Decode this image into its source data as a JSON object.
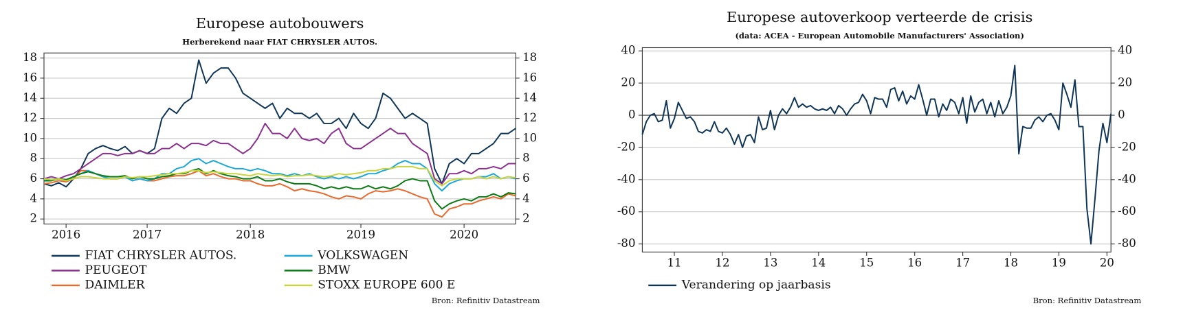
{
  "chart_data": [
    {
      "type": "line",
      "title": "Europese autobouwers",
      "subtitle": "Herberekend naar FIAT CHRYSLER AUTOS.",
      "source": "Bron: Refinitiv Datastream",
      "categories": [
        null,
        null,
        null,
        "2016",
        null,
        null,
        null,
        null,
        null,
        null,
        null,
        null,
        null,
        null,
        "2017",
        null,
        null,
        null,
        null,
        null,
        null,
        null,
        null,
        null,
        null,
        null,
        null,
        null,
        "2018",
        null,
        null,
        null,
        null,
        null,
        null,
        null,
        null,
        null,
        null,
        null,
        null,
        null,
        null,
        "2019",
        null,
        null,
        null,
        null,
        null,
        null,
        null,
        null,
        null,
        null,
        null,
        null,
        null,
        "2020",
        null,
        null,
        null,
        null,
        null,
        null,
        null
      ],
      "series": [
        {
          "name": "FIAT CHRYSLER AUTOS.",
          "color": "#0e3456",
          "values": [
            5.5,
            5.3,
            5.6,
            5.2,
            6.0,
            7.0,
            8.5,
            9.0,
            9.3,
            9.0,
            8.8,
            9.2,
            8.5,
            8.8,
            8.5,
            9.0,
            12.0,
            13.0,
            12.5,
            13.5,
            14.0,
            17.8,
            15.5,
            16.5,
            17.0,
            17.0,
            16.0,
            14.5,
            14.0,
            13.5,
            13.0,
            13.5,
            12.0,
            13.0,
            12.5,
            12.5,
            12.0,
            12.5,
            11.5,
            11.5,
            12.0,
            11.0,
            12.5,
            11.5,
            11.0,
            12.0,
            14.5,
            14.0,
            13.0,
            12.0,
            12.5,
            12.0,
            11.5,
            7.0,
            5.5,
            7.5,
            8.0,
            7.5,
            8.5,
            8.5,
            9.0,
            9.5,
            10.5,
            10.5,
            11.0
          ]
        },
        {
          "name": "PEUGEOT",
          "color": "#8b2f8f",
          "values": [
            6.0,
            6.2,
            6.0,
            6.3,
            6.5,
            7.0,
            7.5,
            8.0,
            8.5,
            8.5,
            8.3,
            8.5,
            8.5,
            8.8,
            8.5,
            8.5,
            9.0,
            9.0,
            9.5,
            9.0,
            9.5,
            9.5,
            9.3,
            9.8,
            9.5,
            9.5,
            9.0,
            8.5,
            9.0,
            10.0,
            11.5,
            10.5,
            10.5,
            10.0,
            11.0,
            10.0,
            9.8,
            10.0,
            9.5,
            10.5,
            11.0,
            9.5,
            9.0,
            9.0,
            9.5,
            10.0,
            10.5,
            11.0,
            10.5,
            10.5,
            9.5,
            9.0,
            8.5,
            6.0,
            5.5,
            6.5,
            6.5,
            6.8,
            6.5,
            7.0,
            7.0,
            7.2,
            7.0,
            7.5,
            7.5
          ]
        },
        {
          "name": "DAIMLER",
          "color": "#e8692b",
          "values": [
            5.5,
            5.6,
            5.8,
            5.7,
            6.0,
            6.8,
            6.8,
            6.5,
            6.2,
            6.0,
            6.0,
            6.2,
            5.8,
            6.0,
            5.8,
            5.8,
            6.0,
            6.2,
            6.3,
            6.3,
            6.5,
            6.8,
            6.3,
            6.5,
            6.2,
            6.0,
            6.0,
            5.8,
            5.8,
            5.5,
            5.3,
            5.3,
            5.5,
            5.2,
            4.8,
            5.0,
            4.8,
            4.7,
            4.5,
            4.2,
            4.0,
            4.3,
            4.2,
            4.0,
            4.5,
            4.8,
            4.7,
            4.8,
            5.0,
            4.8,
            4.5,
            4.2,
            4.0,
            2.5,
            2.2,
            3.0,
            3.2,
            3.5,
            3.5,
            3.8,
            4.0,
            4.2,
            4.0,
            4.5,
            4.3
          ]
        },
        {
          "name": "VOLKSWAGEN",
          "color": "#1aa7d8",
          "values": [
            5.8,
            5.9,
            6.0,
            5.8,
            6.2,
            6.5,
            6.8,
            6.5,
            6.2,
            6.0,
            6.0,
            6.2,
            5.8,
            6.0,
            5.8,
            6.0,
            6.5,
            6.5,
            7.0,
            7.2,
            7.8,
            8.0,
            7.5,
            7.8,
            7.5,
            7.2,
            7.0,
            7.0,
            6.8,
            7.0,
            6.8,
            6.5,
            6.5,
            6.3,
            6.5,
            6.3,
            6.5,
            6.2,
            6.0,
            6.2,
            6.0,
            6.2,
            6.0,
            6.2,
            6.5,
            6.5,
            6.8,
            7.0,
            7.5,
            7.8,
            7.5,
            7.5,
            7.0,
            5.5,
            4.8,
            5.5,
            5.8,
            6.0,
            6.0,
            6.2,
            6.2,
            6.5,
            6.0,
            6.2,
            6.0
          ]
        },
        {
          "name": "BMW",
          "color": "#0a7a12",
          "values": [
            5.8,
            5.8,
            6.0,
            5.9,
            6.2,
            6.5,
            6.7,
            6.5,
            6.3,
            6.2,
            6.2,
            6.3,
            6.0,
            6.2,
            6.0,
            6.0,
            6.2,
            6.3,
            6.5,
            6.5,
            6.8,
            7.0,
            6.5,
            6.8,
            6.5,
            6.3,
            6.2,
            6.0,
            6.0,
            6.2,
            5.8,
            5.8,
            6.0,
            5.7,
            5.5,
            5.5,
            5.5,
            5.3,
            5.0,
            5.2,
            5.0,
            5.2,
            5.0,
            5.0,
            5.3,
            5.0,
            5.2,
            5.0,
            5.3,
            5.8,
            6.0,
            5.8,
            5.8,
            3.8,
            3.0,
            3.5,
            3.8,
            4.0,
            3.8,
            4.2,
            4.2,
            4.5,
            4.2,
            4.6,
            4.5
          ]
        },
        {
          "name": "STOXX EUROPE 600 E",
          "color": "#c8d43a",
          "values": [
            6.0,
            5.9,
            6.0,
            5.8,
            6.0,
            6.2,
            6.2,
            6.1,
            6.0,
            6.0,
            6.0,
            6.2,
            6.1,
            6.2,
            6.2,
            6.3,
            6.4,
            6.5,
            6.5,
            6.6,
            6.8,
            6.8,
            6.6,
            6.7,
            6.6,
            6.5,
            6.5,
            6.4,
            6.3,
            6.5,
            6.4,
            6.3,
            6.4,
            6.2,
            6.3,
            6.3,
            6.4,
            6.3,
            6.2,
            6.3,
            6.5,
            6.4,
            6.5,
            6.6,
            6.8,
            6.8,
            7.0,
            7.0,
            7.2,
            7.2,
            7.2,
            7.0,
            7.0,
            5.8,
            5.3,
            5.8,
            6.0,
            6.0,
            6.0,
            6.2,
            6.0,
            6.2,
            6.0,
            6.2,
            6.1
          ]
        }
      ],
      "ylim": [
        1.5,
        18.5
      ],
      "yticks": [
        2,
        4,
        6,
        8,
        10,
        12,
        14,
        16,
        18
      ],
      "grid": true
    },
    {
      "type": "line",
      "title": "Europese autoverkoop verteerde de crisis",
      "subtitle": "(data: ACEA - European Automobile Manufacturers' Association)",
      "source": "Bron: Refinitiv Datastream",
      "categories": [
        null,
        null,
        null,
        null,
        null,
        null,
        null,
        null,
        "11",
        null,
        null,
        null,
        null,
        null,
        null,
        null,
        null,
        null,
        null,
        null,
        "12",
        null,
        null,
        null,
        null,
        null,
        null,
        null,
        null,
        null,
        null,
        null,
        "13",
        null,
        null,
        null,
        null,
        null,
        null,
        null,
        null,
        null,
        null,
        null,
        "14",
        null,
        null,
        null,
        null,
        null,
        null,
        null,
        null,
        null,
        null,
        null,
        "15",
        null,
        null,
        null,
        null,
        null,
        null,
        null,
        null,
        null,
        null,
        null,
        "16",
        null,
        null,
        null,
        null,
        null,
        null,
        null,
        null,
        null,
        null,
        null,
        "17",
        null,
        null,
        null,
        null,
        null,
        null,
        null,
        null,
        null,
        null,
        null,
        "18",
        null,
        null,
        null,
        null,
        null,
        null,
        null,
        null,
        null,
        null,
        null,
        "19",
        null,
        null,
        null,
        null,
        null,
        null,
        null,
        null,
        null,
        null,
        null,
        "20",
        null
      ],
      "series": [
        {
          "name": "Verandering op jaarbasis",
          "color": "#0e3456",
          "values": [
            -12,
            -4,
            0,
            1,
            -4,
            -3,
            9,
            -8,
            -2,
            8,
            3,
            -2,
            -1,
            -4,
            -10,
            -11,
            -9,
            -10,
            -4,
            -10,
            -11,
            -8,
            -12,
            -18,
            -12,
            -20,
            -13,
            -12,
            -17,
            -1,
            -9,
            -8,
            3,
            -9,
            0,
            4,
            1,
            5,
            11,
            5,
            7,
            5,
            6,
            4,
            3,
            4,
            3,
            5,
            1,
            6,
            4,
            0,
            4,
            7,
            8,
            13,
            9,
            1,
            11,
            10,
            10,
            5,
            16,
            17,
            9,
            15,
            7,
            12,
            10,
            19,
            10,
            0,
            10,
            10,
            -1,
            7,
            3,
            10,
            8,
            1,
            11,
            -5,
            12,
            2,
            8,
            10,
            1,
            8,
            -1,
            9,
            1,
            5,
            12,
            31,
            -24,
            -7,
            -8,
            -8,
            -3,
            -1,
            -4,
            0,
            1,
            -3,
            -9,
            20,
            13,
            5,
            22,
            -7,
            -7,
            -58,
            -80,
            -52,
            -22,
            -5,
            -17,
            1
          ]
        }
      ],
      "ylim": [
        -85,
        42
      ],
      "yticks": [
        -80,
        -60,
        -40,
        -20,
        0,
        20,
        40
      ],
      "grid": true,
      "zero_line": true
    }
  ]
}
